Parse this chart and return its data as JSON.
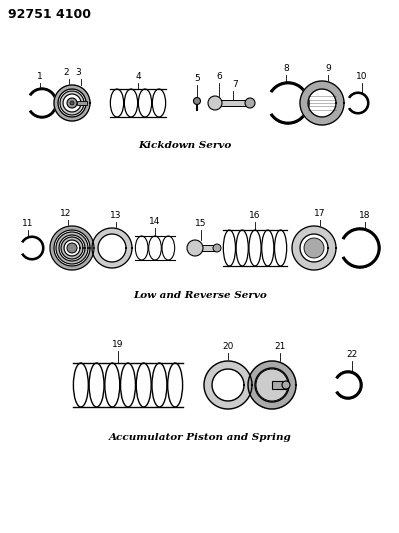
{
  "title": "92751 4100",
  "background_color": "#ffffff",
  "line_color": "#000000",
  "section1_label": "Kickdown Servo",
  "section2_label": "Low and Reverse Servo",
  "section3_label": "Accumulator Piston and Spring",
  "figsize": [
    3.99,
    5.33
  ],
  "dpi": 100
}
